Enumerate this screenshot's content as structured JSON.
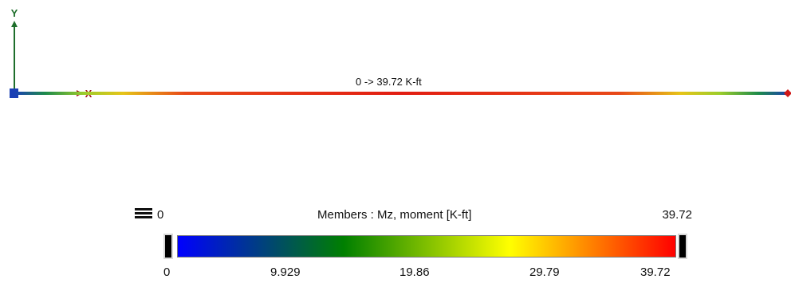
{
  "axes": {
    "y_label": "Y",
    "x_label": "X"
  },
  "member": {
    "range_label": "0 -> 39.72 K-ft"
  },
  "legend": {
    "title": "Members : Mz, moment [K-ft]",
    "min_label": "0",
    "max_label": "39.72",
    "menu_icon": "hamburger-icon",
    "ticks": [
      "0",
      "9.929",
      "19.86",
      "29.79",
      "39.72"
    ]
  },
  "colors": {
    "axis_x": "#a31d1d",
    "axis_y": "#1e6e2b",
    "axis_z": "#1a3fb5",
    "colormap": [
      "#0000ff",
      "#007f00",
      "#ffff00",
      "#ff0000"
    ]
  }
}
